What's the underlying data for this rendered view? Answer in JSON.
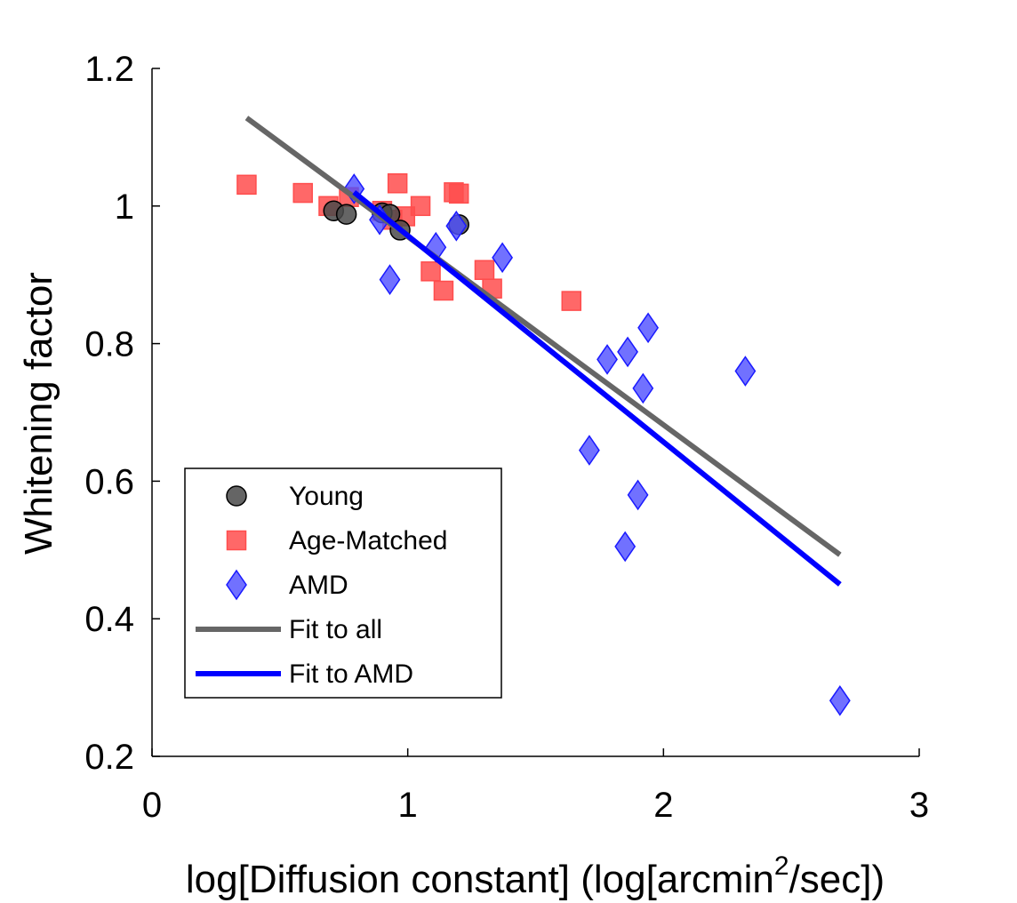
{
  "chart_data": {
    "type": "scatter",
    "title": "",
    "xlabel_main": "log[Diffusion constant] (log[arcmin",
    "xlabel_sup": "2",
    "xlabel_tail": "/sec])",
    "ylabel": "Whitening factor",
    "xlim": [
      0,
      3
    ],
    "ylim": [
      0.2,
      1.2
    ],
    "xticks": [
      0,
      1,
      2,
      3
    ],
    "xtick_labels": [
      "0",
      "1",
      "2",
      "3"
    ],
    "yticks": [
      0.2,
      0.4,
      0.6,
      0.8,
      1.0,
      1.2
    ],
    "ytick_labels": [
      "0.2",
      "0.4",
      "0.6",
      "0.8",
      "1",
      "1.2"
    ],
    "grid": false,
    "legend_position": "bottom-left",
    "series": [
      {
        "name": "Young",
        "marker": "circle",
        "color": "#4a4a4a",
        "points": [
          {
            "x": 0.71,
            "y": 0.993
          },
          {
            "x": 0.76,
            "y": 0.988
          },
          {
            "x": 0.9,
            "y": 0.99
          },
          {
            "x": 0.93,
            "y": 0.988
          },
          {
            "x": 0.97,
            "y": 0.965
          },
          {
            "x": 1.2,
            "y": 0.973
          }
        ]
      },
      {
        "name": "Age-Matched",
        "marker": "square",
        "color": "#ff4d4d",
        "points": [
          {
            "x": 0.37,
            "y": 1.031
          },
          {
            "x": 0.59,
            "y": 1.019
          },
          {
            "x": 0.69,
            "y": 1.0
          },
          {
            "x": 0.77,
            "y": 1.013
          },
          {
            "x": 0.9,
            "y": 0.993
          },
          {
            "x": 0.94,
            "y": 0.98
          },
          {
            "x": 0.96,
            "y": 1.033
          },
          {
            "x": 0.99,
            "y": 0.985
          },
          {
            "x": 1.05,
            "y": 1.0
          },
          {
            "x": 1.09,
            "y": 0.905
          },
          {
            "x": 1.14,
            "y": 0.877
          },
          {
            "x": 1.18,
            "y": 1.02
          },
          {
            "x": 1.2,
            "y": 1.018
          },
          {
            "x": 1.3,
            "y": 0.907
          },
          {
            "x": 1.33,
            "y": 0.88
          },
          {
            "x": 1.64,
            "y": 0.862
          }
        ]
      },
      {
        "name": "AMD",
        "marker": "diamond",
        "color": "#4d4dff",
        "points": [
          {
            "x": 0.79,
            "y": 1.025
          },
          {
            "x": 0.89,
            "y": 0.98
          },
          {
            "x": 0.93,
            "y": 0.893
          },
          {
            "x": 1.11,
            "y": 0.94
          },
          {
            "x": 1.19,
            "y": 0.971
          },
          {
            "x": 1.37,
            "y": 0.925
          },
          {
            "x": 1.71,
            "y": 0.645
          },
          {
            "x": 1.78,
            "y": 0.777
          },
          {
            "x": 1.85,
            "y": 0.505
          },
          {
            "x": 1.86,
            "y": 0.788
          },
          {
            "x": 1.9,
            "y": 0.58
          },
          {
            "x": 1.92,
            "y": 0.735
          },
          {
            "x": 1.94,
            "y": 0.823
          },
          {
            "x": 2.32,
            "y": 0.76
          },
          {
            "x": 2.69,
            "y": 0.281
          }
        ]
      }
    ],
    "fits": [
      {
        "name": "Fit to all",
        "color": "#666666",
        "x": [
          0.37,
          2.69
        ],
        "y": [
          1.128,
          0.493
        ]
      },
      {
        "name": "Fit to AMD",
        "color": "#0000ff",
        "x": [
          0.79,
          2.69
        ],
        "y": [
          1.02,
          0.45
        ]
      }
    ]
  }
}
